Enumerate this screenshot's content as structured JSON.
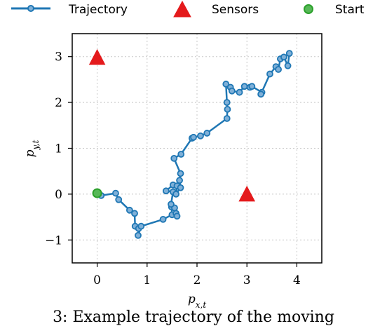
{
  "caption": "3: Example trajectory of the moving",
  "colors": {
    "trajectory": "#1f77b4",
    "sensor": "#e41a1c",
    "start": "#2ca02c"
  },
  "chart_data": {
    "type": "scatter",
    "xlabel": "p_x,t",
    "ylabel": "p_y,t",
    "xlim": [
      -0.5,
      4.5
    ],
    "ylim": [
      -1.5,
      3.5
    ],
    "xticks": [
      0,
      1,
      2,
      3,
      4
    ],
    "yticks": [
      -1,
      0,
      1,
      2,
      3
    ],
    "grid": true,
    "legend": {
      "placement": "top",
      "entries": [
        "Trajectory",
        "Sensors",
        "Start"
      ]
    },
    "series": [
      {
        "name": "Trajectory",
        "kind": "line-with-markers",
        "points": [
          [
            0.0,
            0.02
          ],
          [
            0.08,
            -0.03
          ],
          [
            0.37,
            0.02
          ],
          [
            0.43,
            -0.12
          ],
          [
            0.65,
            -0.35
          ],
          [
            0.75,
            -0.42
          ],
          [
            0.76,
            -0.7
          ],
          [
            0.83,
            -0.75
          ],
          [
            0.82,
            -0.9
          ],
          [
            0.88,
            -0.7
          ],
          [
            1.32,
            -0.55
          ],
          [
            1.5,
            -0.45
          ],
          [
            1.49,
            -0.28
          ],
          [
            1.58,
            -0.42
          ],
          [
            1.6,
            -0.48
          ],
          [
            1.55,
            -0.3
          ],
          [
            1.48,
            -0.22
          ],
          [
            1.52,
            0.05
          ],
          [
            1.38,
            0.07
          ],
          [
            1.52,
            0.2
          ],
          [
            1.6,
            0.18
          ],
          [
            1.58,
            0.0
          ],
          [
            1.67,
            0.14
          ],
          [
            1.65,
            0.3
          ],
          [
            1.67,
            0.45
          ],
          [
            1.54,
            0.78
          ],
          [
            1.68,
            0.87
          ],
          [
            1.9,
            1.22
          ],
          [
            1.93,
            1.24
          ],
          [
            2.07,
            1.27
          ],
          [
            2.2,
            1.33
          ],
          [
            2.6,
            1.65
          ],
          [
            2.61,
            1.85
          ],
          [
            2.6,
            2.0
          ],
          [
            2.58,
            2.4
          ],
          [
            2.67,
            2.33
          ],
          [
            2.7,
            2.25
          ],
          [
            2.85,
            2.22
          ],
          [
            2.95,
            2.35
          ],
          [
            3.06,
            2.33
          ],
          [
            3.1,
            2.35
          ],
          [
            3.3,
            2.22
          ],
          [
            3.28,
            2.18
          ],
          [
            3.46,
            2.62
          ],
          [
            3.58,
            2.78
          ],
          [
            3.63,
            2.72
          ],
          [
            3.67,
            2.95
          ],
          [
            3.74,
            2.99
          ],
          [
            3.82,
            2.8
          ],
          [
            3.85,
            3.07
          ]
        ]
      },
      {
        "name": "Sensors",
        "kind": "triangle",
        "points": [
          [
            0.0,
            2.98
          ],
          [
            3.0,
            0.0
          ]
        ]
      },
      {
        "name": "Start",
        "kind": "circle",
        "points": [
          [
            0.0,
            0.02
          ]
        ]
      }
    ]
  }
}
